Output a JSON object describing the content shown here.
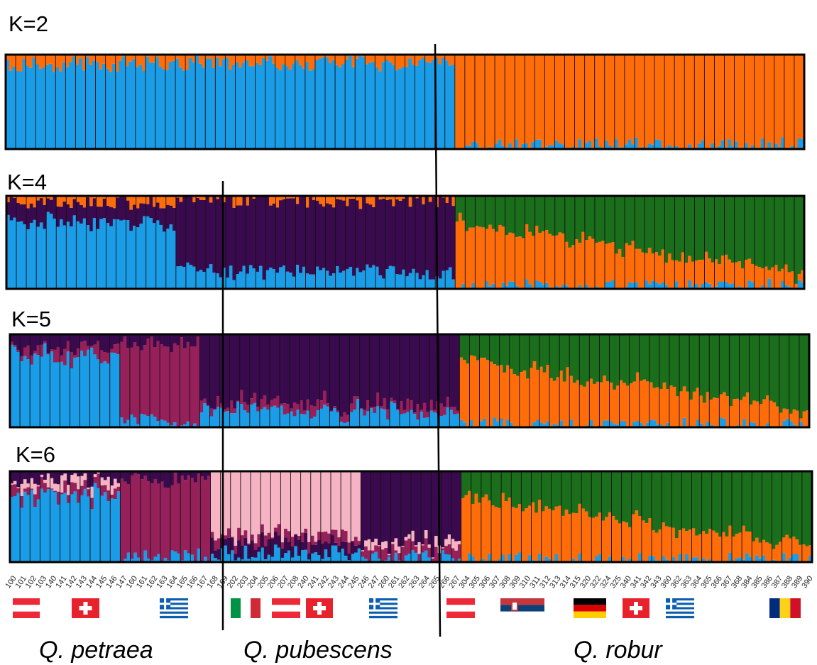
{
  "chart_data": {
    "type": "bar",
    "subtype": "stacked-admixture (STRUCTURE plot)",
    "colors": {
      "blue": "#1a9ce6",
      "orange": "#ff6d0a",
      "dark_purple": "#3a0a4e",
      "green": "#1b6e1b",
      "magenta": "#96205a",
      "pink": "#f6b3c3"
    },
    "panels": [
      {
        "label": "K=2",
        "components": [
          "blue",
          "orange"
        ]
      },
      {
        "label": "K=4",
        "components": [
          "blue",
          "dark_purple",
          "orange",
          "green"
        ]
      },
      {
        "label": "K=5",
        "components": [
          "blue",
          "magenta",
          "dark_purple",
          "orange",
          "green"
        ]
      },
      {
        "label": "K=6",
        "components": [
          "blue",
          "magenta",
          "pink",
          "dark_purple",
          "orange",
          "green"
        ]
      }
    ],
    "population_labels": [
      "100",
      "101",
      "102",
      "103",
      "140",
      "141",
      "142",
      "143",
      "144",
      "145",
      "146",
      "147",
      "160",
      "161",
      "162",
      "163",
      "164",
      "165",
      "166",
      "167",
      "168",
      "169",
      "202",
      "203",
      "204",
      "205",
      "206",
      "207",
      "208",
      "240",
      "241",
      "242",
      "243",
      "244",
      "245",
      "246",
      "247",
      "260",
      "261",
      "262",
      "263",
      "264",
      "265",
      "266",
      "267",
      "304",
      "305",
      "306",
      "307",
      "308",
      "309",
      "310",
      "311",
      "312",
      "313",
      "314",
      "315",
      "320",
      "322",
      "324",
      "325",
      "340",
      "341",
      "342",
      "343",
      "360",
      "362",
      "363",
      "364",
      "365",
      "366",
      "367",
      "368",
      "384",
      "385",
      "386",
      "387",
      "388",
      "389",
      "390"
    ],
    "species": [
      {
        "name": "Q. petraea",
        "populations": 22
      },
      {
        "name": "Q. pubescens",
        "populations": 23
      },
      {
        "name": "Q. robur",
        "populations": 35
      }
    ],
    "country_flags": [
      {
        "species": "Q. petraea",
        "flags": [
          "austria-flag",
          "switzerland-flag",
          "greece-flag"
        ]
      },
      {
        "species": "Q. pubescens",
        "flags": [
          "italy-flag",
          "austria-flag",
          "switzerland-flag",
          "greece-flag"
        ]
      },
      {
        "species": "Q. robur",
        "flags": [
          "austria-flag",
          "serbia-flag",
          "germany-flag",
          "switzerland-flag",
          "greece-flag",
          "romania-flag"
        ]
      }
    ],
    "ylim": [
      0,
      1
    ],
    "grid": false,
    "legend": "none"
  }
}
